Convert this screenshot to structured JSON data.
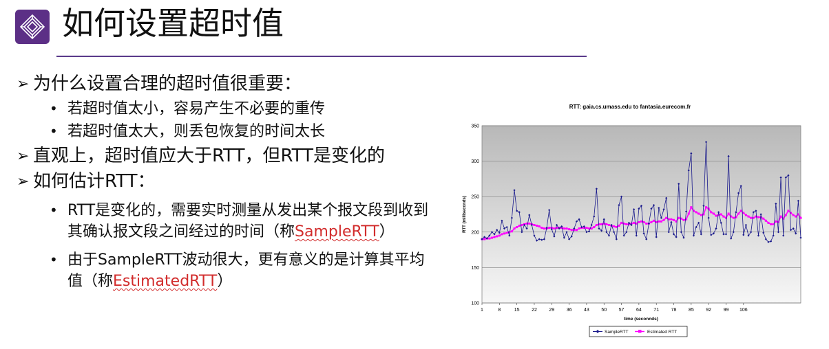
{
  "slide": {
    "title": "如何设置超时值",
    "bullets": [
      {
        "level": 1,
        "text": "为什么设置合理的超时值很重要："
      },
      {
        "level": 2,
        "text": "若超时值太小，容易产生不必要的重传"
      },
      {
        "level": 2,
        "text": "若超时值太大，则丢包恢复的时间太长"
      },
      {
        "level": 1,
        "text": "直观上，超时值应大于RTT，但RTT是变化的"
      },
      {
        "level": 1,
        "text": "如何估计RTT："
      },
      {
        "level": 2,
        "parts": [
          "RTT是变化的，需要实时测量从发出某个报文段到收到其确认报文段之间经过的时间（称",
          "SampleRTT",
          "）"
        ]
      },
      {
        "level": 2,
        "parts": [
          "由于SampleRTT波动很大，更有意义的是计算其平均值（称",
          "EstimatedRTT",
          "）"
        ]
      }
    ]
  },
  "colors": {
    "accent": "#5c2f86",
    "highlight": "#d22c2c",
    "sample_series": "#1a1a8c",
    "estimated_series": "#ff00ff"
  },
  "chart_data": {
    "type": "line",
    "title": "RTT: gaia.cs.umass.edu to fantasia.eurecom.fr",
    "xlabel": "time (seconnds)",
    "ylabel": "RTT (milliseconds)",
    "ylim": [
      100,
      350
    ],
    "yticks": [
      100,
      150,
      200,
      250,
      300,
      350
    ],
    "xticks": [
      1,
      8,
      15,
      22,
      29,
      36,
      43,
      50,
      57,
      64,
      71,
      78,
      85,
      92,
      99,
      106
    ],
    "grid": true,
    "legend_position": "bottom",
    "series": [
      {
        "name": "SampleRTT",
        "values": [
          190,
          193,
          191,
          195,
          200,
          197,
          203,
          199,
          216,
          205,
          207,
          195,
          220,
          259,
          230,
          228,
          200,
          210,
          205,
          224,
          210,
          195,
          188,
          190,
          189,
          190,
          206,
          231,
          204,
          194,
          210,
          205,
          208,
          192,
          200,
          190,
          194,
          205,
          215,
          218,
          207,
          208,
          200,
          201,
          210,
          222,
          261,
          205,
          202,
          218,
          200,
          195,
          210,
          200,
          190,
          238,
          250,
          195,
          200,
          213,
          210,
          232,
          195,
          233,
          237,
          198,
          190,
          212,
          233,
          238,
          193,
          234,
          220,
          232,
          248,
          200,
          214,
          197,
          193,
          268,
          200,
          192,
          229,
          287,
          311,
          195,
          207,
          213,
          197,
          237,
          327,
          220,
          196,
          198,
          205,
          228,
          213,
          197,
          197,
          307,
          191,
          200,
          228,
          255,
          265,
          196,
          210,
          195,
          200,
          228,
          230,
          195,
          225,
          199,
          190,
          186,
          187,
          195,
          240,
          200,
          277,
          195,
          277,
          280,
          203,
          205,
          198,
          244,
          192
        ]
      },
      {
        "name": "Estimated RTT",
        "values": [
          190,
          190,
          191,
          191,
          192,
          193,
          194,
          195,
          197,
          198,
          199,
          200,
          201,
          205,
          207,
          209,
          210,
          211,
          212,
          212,
          211,
          210,
          209,
          208,
          206,
          205,
          205,
          206,
          206,
          205,
          206,
          206,
          206,
          205,
          205,
          204,
          203,
          203,
          203,
          205,
          206,
          206,
          206,
          205,
          205,
          207,
          210,
          211,
          211,
          212,
          211,
          210,
          209,
          208,
          207,
          209,
          213,
          212,
          211,
          211,
          212,
          213,
          212,
          214,
          215,
          214,
          212,
          212,
          214,
          216,
          214,
          215,
          215,
          217,
          220,
          218,
          218,
          217,
          215,
          220,
          219,
          217,
          218,
          226,
          235,
          230,
          228,
          226,
          224,
          225,
          235,
          233,
          228,
          226,
          223,
          224,
          225,
          222,
          220,
          226,
          222,
          220,
          221,
          226,
          230,
          227,
          224,
          222,
          220,
          220,
          222,
          221,
          221,
          219,
          216,
          213,
          211,
          211,
          215,
          214,
          222,
          219,
          224,
          230,
          227,
          224,
          222,
          225,
          220
        ]
      }
    ]
  }
}
